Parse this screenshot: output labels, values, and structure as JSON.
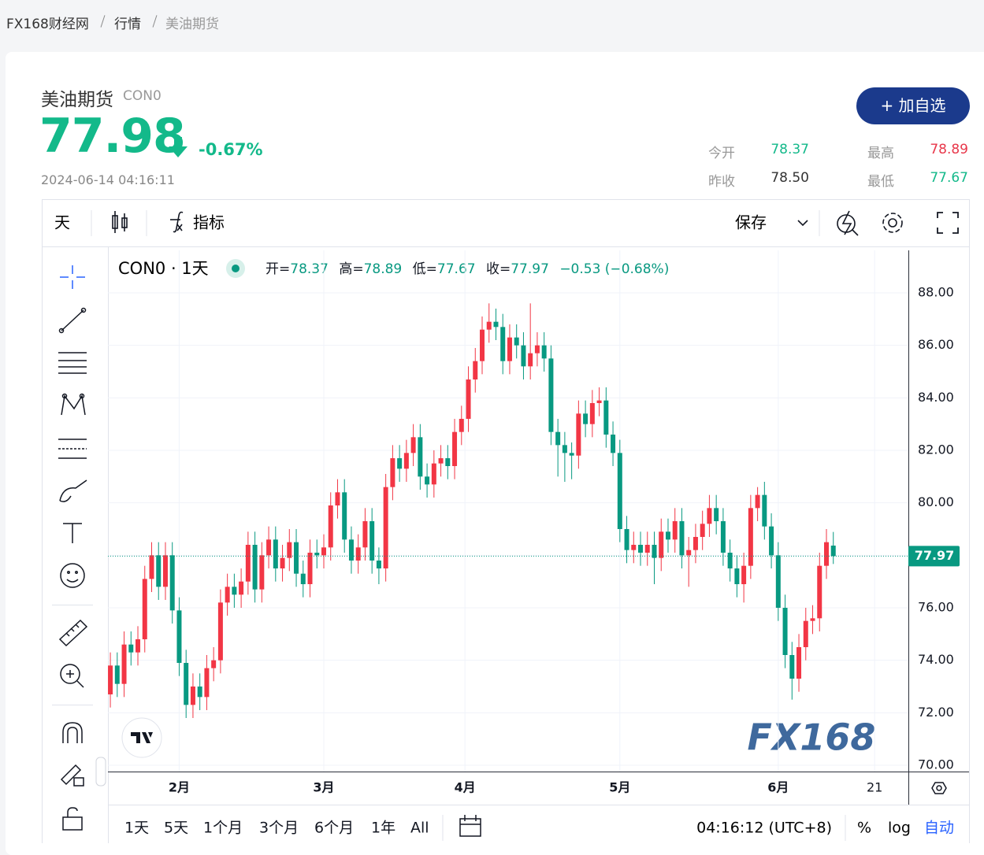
{
  "breadcrumb": [
    "FX168财经网",
    "行情",
    "美油期货"
  ],
  "quote": {
    "name": "美油期货",
    "code": "CON0",
    "price": "77.98",
    "change": "-0.67%",
    "time": "2024-06-14 04:16:11",
    "stats": [
      {
        "label": "今开",
        "value": "78.37"
      },
      {
        "label": "最高",
        "value": "78.89"
      },
      {
        "label": "昨收",
        "value": "78.50"
      },
      {
        "label": "最低",
        "value": "77.67"
      }
    ]
  },
  "button": "+ 加自选",
  "toolbar": {
    "interval": "天",
    "indicators": "指标",
    "save": "保存"
  },
  "chart_data": {
    "type": "candlestick",
    "legend": {
      "symbol": "CON0 · 1天",
      "open": "开=",
      "high": "高=",
      "low": "低=",
      "close": "收=",
      "change": "−0.53 (−0.68%)"
    },
    "up_color": "#f23645",
    "down_color": "#089981",
    "grid": true,
    "watermark": "FX168",
    "candles": [
      [
        72.7,
        74.3,
        72.2,
        73.8
      ],
      [
        73.8,
        74.3,
        72.6,
        73.1
      ],
      [
        73.1,
        75.1,
        72.6,
        74.6
      ],
      [
        74.6,
        75.1,
        73.8,
        74.3
      ],
      [
        74.3,
        75.3,
        73.8,
        74.8
      ],
      [
        74.8,
        77.6,
        74.3,
        77.1
      ],
      [
        77.1,
        78.5,
        76.6,
        78.0
      ],
      [
        78.0,
        78.5,
        76.3,
        76.8
      ],
      [
        76.8,
        78.5,
        76.3,
        78.0
      ],
      [
        78.0,
        78.5,
        75.4,
        75.9
      ],
      [
        75.9,
        76.4,
        73.4,
        73.9
      ],
      [
        73.9,
        74.4,
        71.8,
        72.3
      ],
      [
        72.3,
        73.5,
        71.8,
        73.0
      ],
      [
        73.0,
        73.5,
        72.1,
        72.6
      ],
      [
        72.6,
        74.2,
        72.1,
        73.7
      ],
      [
        73.7,
        74.5,
        73.2,
        74.0
      ],
      [
        74.0,
        76.7,
        73.5,
        76.2
      ],
      [
        76.2,
        77.3,
        75.7,
        76.8
      ],
      [
        76.8,
        77.3,
        76.0,
        76.5
      ],
      [
        76.5,
        77.5,
        76.0,
        77.0
      ],
      [
        77.0,
        78.9,
        76.5,
        78.4
      ],
      [
        78.4,
        78.9,
        76.2,
        76.7
      ],
      [
        76.7,
        78.5,
        76.2,
        78.0
      ],
      [
        78.0,
        79.1,
        77.5,
        78.6
      ],
      [
        78.6,
        79.1,
        77.0,
        77.5
      ],
      [
        77.5,
        78.4,
        77.0,
        77.9
      ],
      [
        77.9,
        79.0,
        77.4,
        78.5
      ],
      [
        78.5,
        79.0,
        76.8,
        77.3
      ],
      [
        77.3,
        77.8,
        76.4,
        76.9
      ],
      [
        76.9,
        78.6,
        76.4,
        78.1
      ],
      [
        78.1,
        78.6,
        77.5,
        78.0
      ],
      [
        78.0,
        78.8,
        77.5,
        78.3
      ],
      [
        78.3,
        80.4,
        77.8,
        79.9
      ],
      [
        79.9,
        80.9,
        79.4,
        80.4
      ],
      [
        80.4,
        80.9,
        78.1,
        78.6
      ],
      [
        78.6,
        79.1,
        77.3,
        77.8
      ],
      [
        77.8,
        78.8,
        77.3,
        78.3
      ],
      [
        78.3,
        79.8,
        77.8,
        79.3
      ],
      [
        79.3,
        79.8,
        77.3,
        77.8
      ],
      [
        77.8,
        78.3,
        76.9,
        77.5
      ],
      [
        77.5,
        81.1,
        77.0,
        80.6
      ],
      [
        80.6,
        82.2,
        80.1,
        81.7
      ],
      [
        81.7,
        82.2,
        80.8,
        81.3
      ],
      [
        81.3,
        82.4,
        80.8,
        81.9
      ],
      [
        81.9,
        83.0,
        81.4,
        82.5
      ],
      [
        82.5,
        83.0,
        80.5,
        81.0
      ],
      [
        81.0,
        81.5,
        80.2,
        80.7
      ],
      [
        80.7,
        82.0,
        80.2,
        81.5
      ],
      [
        81.5,
        82.2,
        81.0,
        81.7
      ],
      [
        81.7,
        82.2,
        80.9,
        81.4
      ],
      [
        81.4,
        83.2,
        80.9,
        82.7
      ],
      [
        82.7,
        83.7,
        82.2,
        83.2
      ],
      [
        83.2,
        85.2,
        82.7,
        84.7
      ],
      [
        84.7,
        85.9,
        84.2,
        85.4
      ],
      [
        85.4,
        87.1,
        84.9,
        86.6
      ],
      [
        86.6,
        87.6,
        86.1,
        86.9
      ],
      [
        86.9,
        87.4,
        86.2,
        86.7
      ],
      [
        86.7,
        87.2,
        84.9,
        85.4
      ],
      [
        85.4,
        86.8,
        84.9,
        86.3
      ],
      [
        86.3,
        86.8,
        85.5,
        86.0
      ],
      [
        86.0,
        86.5,
        84.7,
        85.2
      ],
      [
        85.2,
        87.6,
        84.7,
        85.7
      ],
      [
        85.7,
        86.5,
        85.2,
        86.0
      ],
      [
        86.0,
        86.5,
        85.0,
        85.5
      ],
      [
        85.5,
        86.0,
        82.2,
        82.7
      ],
      [
        82.7,
        83.2,
        81.0,
        82.2
      ],
      [
        82.2,
        82.7,
        80.8,
        81.9
      ],
      [
        81.9,
        82.3,
        80.9,
        81.8
      ],
      [
        81.8,
        83.9,
        81.3,
        83.4
      ],
      [
        83.4,
        83.9,
        82.5,
        83.0
      ],
      [
        83.0,
        84.3,
        82.5,
        83.8
      ],
      [
        83.8,
        84.4,
        83.3,
        83.9
      ],
      [
        83.9,
        84.4,
        82.1,
        82.6
      ],
      [
        82.6,
        83.1,
        81.4,
        81.9
      ],
      [
        81.9,
        82.4,
        78.5,
        79.0
      ],
      [
        79.0,
        79.5,
        77.7,
        78.2
      ],
      [
        78.2,
        78.9,
        77.7,
        78.4
      ],
      [
        78.4,
        78.9,
        77.6,
        78.1
      ],
      [
        78.1,
        78.9,
        77.6,
        78.4
      ],
      [
        78.4,
        78.9,
        76.9,
        77.9
      ],
      [
        77.9,
        79.4,
        77.4,
        78.9
      ],
      [
        78.9,
        79.4,
        78.1,
        78.6
      ],
      [
        78.6,
        79.8,
        78.1,
        79.3
      ],
      [
        79.3,
        79.8,
        77.5,
        78.0
      ],
      [
        78.0,
        78.7,
        76.8,
        78.2
      ],
      [
        78.2,
        79.2,
        77.7,
        78.7
      ],
      [
        78.7,
        79.7,
        78.2,
        79.2
      ],
      [
        79.2,
        80.3,
        78.7,
        79.8
      ],
      [
        79.8,
        80.3,
        78.8,
        79.3
      ],
      [
        79.3,
        79.8,
        77.6,
        78.1
      ],
      [
        78.1,
        78.6,
        77.0,
        77.5
      ],
      [
        77.5,
        78.0,
        76.4,
        76.9
      ],
      [
        76.9,
        78.1,
        76.2,
        77.6
      ],
      [
        77.6,
        80.3,
        77.1,
        79.8
      ],
      [
        79.8,
        80.6,
        79.3,
        80.3
      ],
      [
        80.3,
        80.8,
        78.6,
        79.1
      ],
      [
        79.1,
        79.6,
        77.5,
        78.0
      ],
      [
        78.0,
        78.5,
        75.5,
        76.0
      ],
      [
        76.0,
        76.5,
        73.7,
        74.2
      ],
      [
        74.2,
        74.7,
        72.5,
        73.3
      ],
      [
        73.3,
        75.0,
        72.8,
        74.5
      ],
      [
        74.5,
        76.0,
        74.0,
        75.5
      ],
      [
        75.5,
        76.1,
        75.0,
        75.6
      ],
      [
        75.6,
        78.1,
        75.1,
        77.6
      ],
      [
        77.6,
        79.0,
        77.1,
        78.5
      ],
      [
        78.37,
        78.89,
        77.67,
        77.97
      ]
    ],
    "xlim": [
      -0.35,
      115.9
    ],
    "xticks": [
      {
        "value": 10,
        "label": "2月"
      },
      {
        "value": 31,
        "label": "3月"
      },
      {
        "value": 51.5,
        "label": "4月"
      },
      {
        "value": 74,
        "label": "5月"
      },
      {
        "value": 97,
        "label": "6月"
      },
      {
        "value": 111,
        "label": "21"
      }
    ],
    "ylim": [
      69.76,
      89.62
    ],
    "yticks": [
      {
        "value": 70,
        "label": "70.00"
      },
      {
        "value": 72,
        "label": "72.00"
      },
      {
        "value": 74,
        "label": "74.00"
      },
      {
        "value": 76,
        "label": "76.00"
      },
      {
        "value": 78,
        "label": "78.00"
      },
      {
        "value": 80,
        "label": "80.00"
      },
      {
        "value": 82,
        "label": "82.00"
      },
      {
        "value": 84,
        "label": "84.00"
      },
      {
        "value": 86,
        "label": "86.00"
      },
      {
        "value": 88,
        "label": "88.00"
      }
    ]
  },
  "bottom_bar": {
    "ranges": [
      "1天",
      "5天",
      "1个月",
      "3个月",
      "6个月",
      "1年",
      "All"
    ],
    "time": "04:16:12 (UTC+8)",
    "percent": "%",
    "log": "log",
    "auto": "自动"
  }
}
